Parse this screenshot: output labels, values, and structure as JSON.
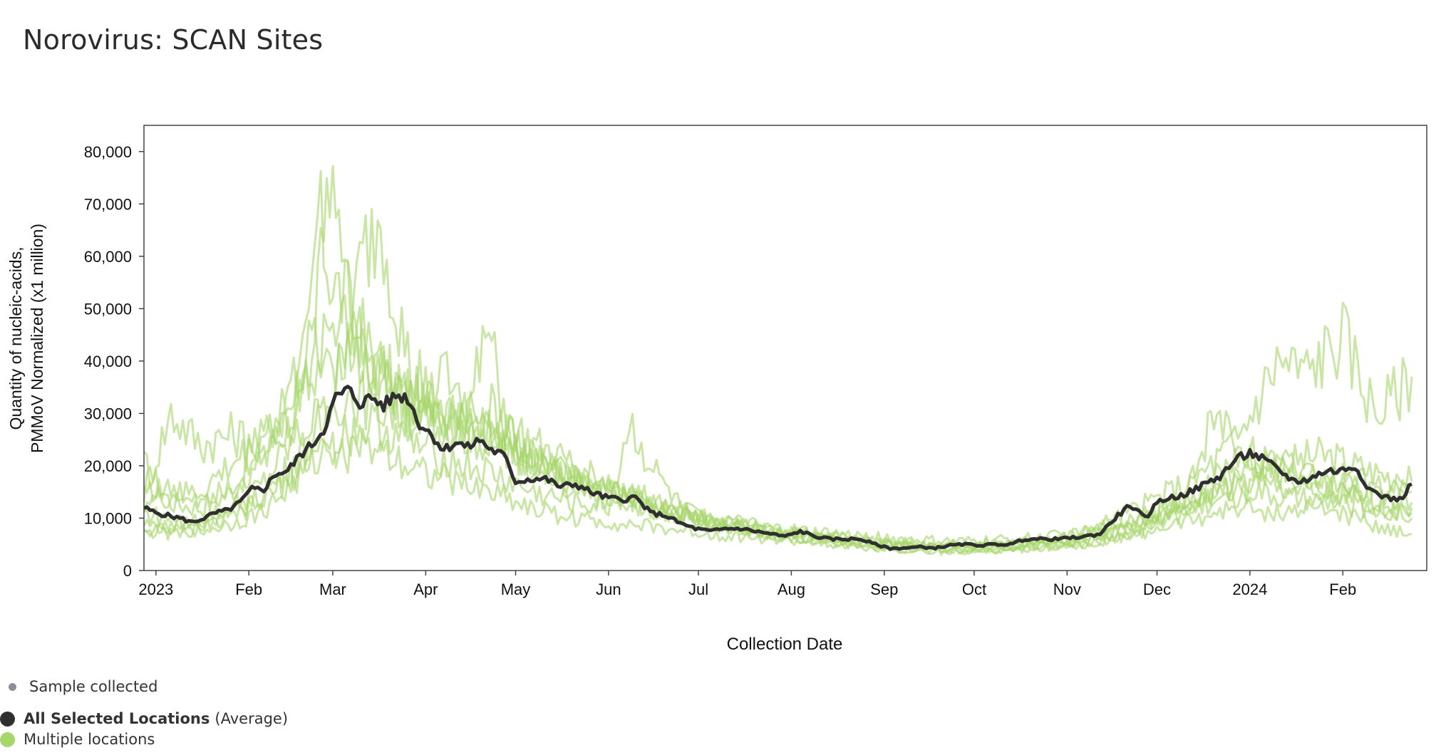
{
  "page": {
    "title": "Norovirus: SCAN Sites"
  },
  "legend": {
    "sample_label": "Sample collected",
    "avg_label_bold": "All Selected Locations",
    "avg_label_suffix": "(Average)",
    "multi_label": "Multiple locations"
  },
  "colors": {
    "average": "#2f2f2f",
    "locations": "#a7d66a",
    "sample_dot": "#8a8f98",
    "frame": "#444444"
  },
  "chart_data": {
    "type": "line",
    "title": "Norovirus: SCAN Sites",
    "xlabel": "Collection Date",
    "ylabel_lines": [
      "Quantity of nucleic-acids,",
      "PMMoV Normalized (x1 million)"
    ],
    "x_range": [
      "2022-12-28",
      "2024-02-29"
    ],
    "ylim": [
      0,
      85000
    ],
    "y_ticks": [
      0,
      10000,
      20000,
      30000,
      40000,
      50000,
      60000,
      70000,
      80000
    ],
    "y_tick_labels": [
      "0",
      "10,000",
      "20,000",
      "30,000",
      "40,000",
      "50,000",
      "60,000",
      "70,000",
      "80,000"
    ],
    "x_ticks": [
      {
        "date": "2023-01-01",
        "label": "2023"
      },
      {
        "date": "2023-02-01",
        "label": "Feb"
      },
      {
        "date": "2023-03-01",
        "label": "Mar"
      },
      {
        "date": "2023-04-01",
        "label": "Apr"
      },
      {
        "date": "2023-05-01",
        "label": "May"
      },
      {
        "date": "2023-06-01",
        "label": "Jun"
      },
      {
        "date": "2023-07-01",
        "label": "Jul"
      },
      {
        "date": "2023-08-01",
        "label": "Aug"
      },
      {
        "date": "2023-09-01",
        "label": "Sep"
      },
      {
        "date": "2023-10-01",
        "label": "Oct"
      },
      {
        "date": "2023-11-01",
        "label": "Nov"
      },
      {
        "date": "2023-12-01",
        "label": "Dec"
      },
      {
        "date": "2024-01-01",
        "label": "2024"
      },
      {
        "date": "2024-02-01",
        "label": "Feb"
      }
    ],
    "grid": false,
    "series": [
      {
        "name": "All Selected Locations",
        "x": [
          "2022-12-28",
          "2023-01-01",
          "2023-01-05",
          "2023-01-09",
          "2023-01-13",
          "2023-01-17",
          "2023-01-21",
          "2023-01-25",
          "2023-01-29",
          "2023-02-02",
          "2023-02-06",
          "2023-02-10",
          "2023-02-14",
          "2023-02-18",
          "2023-02-22",
          "2023-02-26",
          "2023-03-02",
          "2023-03-06",
          "2023-03-10",
          "2023-03-14",
          "2023-03-18",
          "2023-03-22",
          "2023-03-26",
          "2023-03-30",
          "2023-04-03",
          "2023-04-07",
          "2023-04-11",
          "2023-04-15",
          "2023-04-19",
          "2023-04-23",
          "2023-04-27",
          "2023-05-01",
          "2023-05-06",
          "2023-05-11",
          "2023-05-16",
          "2023-05-21",
          "2023-05-26",
          "2023-05-31",
          "2023-06-05",
          "2023-06-10",
          "2023-06-15",
          "2023-06-20",
          "2023-06-25",
          "2023-06-30",
          "2023-07-05",
          "2023-07-10",
          "2023-07-15",
          "2023-07-20",
          "2023-07-25",
          "2023-07-30",
          "2023-08-04",
          "2023-08-09",
          "2023-08-14",
          "2023-08-19",
          "2023-08-24",
          "2023-08-29",
          "2023-09-03",
          "2023-09-08",
          "2023-09-13",
          "2023-09-18",
          "2023-09-23",
          "2023-09-28",
          "2023-10-03",
          "2023-10-08",
          "2023-10-13",
          "2023-10-18",
          "2023-10-23",
          "2023-10-28",
          "2023-11-02",
          "2023-11-07",
          "2023-11-12",
          "2023-11-17",
          "2023-11-22",
          "2023-11-27",
          "2023-12-02",
          "2023-12-07",
          "2023-12-12",
          "2023-12-17",
          "2023-12-22",
          "2023-12-27",
          "2024-01-01",
          "2024-01-06",
          "2024-01-11",
          "2024-01-16",
          "2024-01-21",
          "2024-01-26",
          "2024-01-31",
          "2024-02-05",
          "2024-02-10",
          "2024-02-15",
          "2024-02-20",
          "2024-02-24"
        ],
        "values": [
          12000,
          11000,
          10500,
          10000,
          9200,
          10000,
          11000,
          11500,
          13000,
          15500,
          15500,
          18500,
          19000,
          22000,
          24000,
          27000,
          33000,
          34500,
          32000,
          33000,
          31500,
          33500,
          33000,
          28000,
          26000,
          23000,
          24500,
          23500,
          25000,
          23000,
          22000,
          17000,
          17500,
          17500,
          16000,
          16500,
          15000,
          14000,
          13500,
          14000,
          11000,
          10500,
          9000,
          8000,
          7500,
          8000,
          8000,
          7500,
          7000,
          6500,
          7500,
          6500,
          6000,
          6000,
          6000,
          5000,
          4200,
          4300,
          4500,
          4300,
          4800,
          5000,
          4800,
          5000,
          5000,
          6000,
          6000,
          6000,
          6200,
          6500,
          7000,
          10000,
          12500,
          10000,
          13500,
          14000,
          15000,
          16500,
          18000,
          21000,
          22500,
          21000,
          19000,
          17000,
          17500,
          19000,
          19000,
          20000,
          15500,
          14000,
          13500,
          16500
        ]
      },
      {
        "name": "Multiple locations",
        "sites": [
          {
            "x": [
              "2022-12-28",
              "2023-01-06",
              "2023-01-16",
              "2023-01-26",
              "2023-02-05",
              "2023-02-15",
              "2023-02-21",
              "2023-02-24",
              "2023-03-01",
              "2023-03-07",
              "2023-03-15",
              "2023-03-25",
              "2023-04-05",
              "2023-04-15",
              "2023-04-25",
              "2023-05-06",
              "2023-05-20",
              "2023-06-05",
              "2023-06-20",
              "2023-07-05",
              "2023-07-25",
              "2023-08-15",
              "2023-09-05",
              "2023-09-25",
              "2023-10-15",
              "2023-11-05",
              "2023-11-25",
              "2023-12-15",
              "2023-12-28",
              "2024-01-10",
              "2024-01-25",
              "2024-02-10",
              "2024-02-24"
            ],
            "values": [
              20000,
              13000,
              12000,
              15000,
              22000,
              28000,
              45000,
              68000,
              55000,
              50000,
              40000,
              34000,
              28000,
              26000,
              24000,
              21000,
              18000,
              14000,
              11000,
              9000,
              7500,
              6500,
              5000,
              4500,
              5000,
              6000,
              10000,
              15000,
              22000,
              20000,
              22000,
              19000,
              17000
            ]
          },
          {
            "x": [
              "2022-12-28",
              "2023-01-06",
              "2023-01-16",
              "2023-01-26",
              "2023-02-05",
              "2023-02-15",
              "2023-02-22",
              "2023-02-27",
              "2023-03-03",
              "2023-03-09",
              "2023-03-15",
              "2023-03-25",
              "2023-04-05",
              "2023-04-15",
              "2023-04-25",
              "2023-05-06",
              "2023-05-20",
              "2023-06-05",
              "2023-06-20",
              "2023-07-05",
              "2023-07-25",
              "2023-08-15",
              "2023-09-05",
              "2023-09-25",
              "2023-10-15",
              "2023-11-05",
              "2023-11-25",
              "2023-12-15",
              "2023-12-28",
              "2024-01-10",
              "2024-01-20",
              "2024-02-01",
              "2024-02-12",
              "2024-02-24"
            ],
            "values": [
              15000,
              30000,
              24000,
              26000,
              25000,
              32000,
              40000,
              79000,
              62000,
              45000,
              38000,
              32000,
              30000,
              28000,
              27000,
              22000,
              18000,
              15000,
              12000,
              10000,
              7500,
              6000,
              5500,
              5000,
              5500,
              7000,
              12000,
              18000,
              25000,
              40000,
              38000,
              45000,
              30000,
              37000
            ]
          },
          {
            "x": [
              "2022-12-28",
              "2023-01-06",
              "2023-01-16",
              "2023-01-26",
              "2023-02-05",
              "2023-02-15",
              "2023-02-25",
              "2023-03-05",
              "2023-03-11",
              "2023-03-17",
              "2023-03-22",
              "2023-03-28",
              "2023-04-05",
              "2023-04-15",
              "2023-04-25",
              "2023-05-06",
              "2023-05-20",
              "2023-06-05",
              "2023-06-20",
              "2023-07-05",
              "2023-07-25",
              "2023-08-15",
              "2023-09-05",
              "2023-09-25",
              "2023-10-15",
              "2023-11-05",
              "2023-11-25",
              "2023-12-15",
              "2023-12-28",
              "2024-01-10",
              "2024-01-25",
              "2024-02-10",
              "2024-02-24"
            ],
            "values": [
              9000,
              8000,
              10000,
              12000,
              16000,
              24000,
              30000,
              40000,
              60000,
              68000,
              52000,
              35000,
              30000,
              27000,
              25000,
              20000,
              17000,
              14000,
              11000,
              9000,
              7000,
              6000,
              4500,
              4000,
              4500,
              5500,
              9000,
              14000,
              17000,
              16000,
              15000,
              14000,
              12000
            ]
          },
          {
            "x": [
              "2022-12-28",
              "2023-01-06",
              "2023-01-16",
              "2023-01-26",
              "2023-02-05",
              "2023-02-15",
              "2023-02-25",
              "2023-03-05",
              "2023-03-15",
              "2023-03-25",
              "2023-04-05",
              "2023-04-15",
              "2023-04-22",
              "2023-04-25",
              "2023-05-01",
              "2023-05-10",
              "2023-05-20",
              "2023-06-05",
              "2023-06-20",
              "2023-07-05",
              "2023-07-25",
              "2023-08-15",
              "2023-09-05",
              "2023-09-25",
              "2023-10-15",
              "2023-11-05",
              "2023-11-25",
              "2023-12-15",
              "2023-12-28",
              "2024-01-10",
              "2024-01-25",
              "2024-02-10",
              "2024-02-24"
            ],
            "values": [
              11000,
              10000,
              9000,
              11000,
              14000,
              20000,
              28000,
              34000,
              32000,
              30000,
              28000,
              30000,
              46000,
              36000,
              24000,
              20000,
              17000,
              15000,
              12000,
              9000,
              8000,
              6000,
              5000,
              4500,
              5000,
              5500,
              8000,
              12000,
              14000,
              19000,
              17000,
              15000,
              13000
            ]
          },
          {
            "x": [
              "2022-12-28",
              "2023-01-06",
              "2023-01-16",
              "2023-01-26",
              "2023-02-05",
              "2023-02-15",
              "2023-02-25",
              "2023-03-05",
              "2023-03-15",
              "2023-03-25",
              "2023-04-05",
              "2023-04-15",
              "2023-04-25",
              "2023-05-06",
              "2023-05-20",
              "2023-06-01",
              "2023-06-08",
              "2023-06-15",
              "2023-06-25",
              "2023-07-05",
              "2023-07-25",
              "2023-08-15",
              "2023-09-05",
              "2023-09-25",
              "2023-10-15",
              "2023-11-05",
              "2023-11-25",
              "2023-12-10",
              "2023-12-20",
              "2023-12-28",
              "2024-01-10",
              "2024-01-25",
              "2024-02-10",
              "2024-02-24"
            ],
            "values": [
              7000,
              8000,
              7500,
              9000,
              11000,
              16000,
              22000,
              26000,
              28000,
              25000,
              22000,
              20000,
              18000,
              15000,
              13000,
              12000,
              28000,
              20000,
              12000,
              9000,
              7000,
              5000,
              4000,
              3500,
              4000,
              4500,
              7000,
              12000,
              30000,
              24000,
              19000,
              16000,
              13000,
              10000
            ]
          },
          {
            "x": [
              "2022-12-28",
              "2023-01-06",
              "2023-01-16",
              "2023-01-26",
              "2023-02-05",
              "2023-02-15",
              "2023-02-25",
              "2023-03-05",
              "2023-03-15",
              "2023-03-25",
              "2023-04-05",
              "2023-04-15",
              "2023-04-25",
              "2023-05-06",
              "2023-05-20",
              "2023-06-05",
              "2023-06-20",
              "2023-07-05",
              "2023-07-25",
              "2023-08-15",
              "2023-09-05",
              "2023-09-25",
              "2023-10-15",
              "2023-11-05",
              "2023-11-25",
              "2023-12-15",
              "2023-12-28",
              "2024-01-10",
              "2024-01-25",
              "2024-02-10",
              "2024-02-24"
            ],
            "values": [
              13000,
              14000,
              15000,
              20000,
              25000,
              35000,
              45000,
              50000,
              40000,
              35000,
              38000,
              32000,
              30000,
              24000,
              20000,
              16000,
              12000,
              10000,
              8000,
              7000,
              6000,
              5500,
              6000,
              7000,
              10000,
              14000,
              16000,
              14000,
              13000,
              12000,
              11000
            ]
          },
          {
            "x": [
              "2022-12-28",
              "2023-01-06",
              "2023-01-16",
              "2023-01-26",
              "2023-02-05",
              "2023-02-15",
              "2023-02-25",
              "2023-03-05",
              "2023-03-15",
              "2023-03-25",
              "2023-04-05",
              "2023-04-15",
              "2023-04-25",
              "2023-05-06",
              "2023-05-20",
              "2023-06-05",
              "2023-06-20",
              "2023-07-05",
              "2023-07-25",
              "2023-08-15",
              "2023-09-05",
              "2023-09-25",
              "2023-10-15",
              "2023-11-05",
              "2023-11-25",
              "2023-12-15",
              "2023-12-28",
              "2024-01-10",
              "2024-01-25",
              "2024-02-10",
              "2024-02-24"
            ],
            "values": [
              8000,
              7000,
              8000,
              10000,
              13000,
              18000,
              24000,
              22000,
              24000,
              21000,
              18000,
              16000,
              15000,
              12000,
              10000,
              9000,
              8000,
              7000,
              6000,
              5000,
              4000,
              3500,
              4000,
              5000,
              7000,
              10000,
              12000,
              11000,
              12000,
              9000,
              7000
            ]
          },
          {
            "x": [
              "2022-12-28",
              "2023-01-06",
              "2023-01-16",
              "2023-01-26",
              "2023-02-05",
              "2023-02-15",
              "2023-02-25",
              "2023-03-05",
              "2023-03-15",
              "2023-03-25",
              "2023-04-05",
              "2023-04-15",
              "2023-04-25",
              "2023-05-06",
              "2023-05-20",
              "2023-06-05",
              "2023-06-20",
              "2023-07-05",
              "2023-07-25",
              "2023-08-15",
              "2023-09-05",
              "2023-09-25",
              "2023-10-15",
              "2023-11-05",
              "2023-11-25",
              "2023-12-15",
              "2023-12-28",
              "2024-01-10",
              "2024-01-25",
              "2024-02-10",
              "2024-02-24"
            ],
            "values": [
              16000,
              15000,
              14000,
              17000,
              20000,
              30000,
              40000,
              42000,
              37000,
              33000,
              30000,
              28000,
              26000,
              20000,
              16000,
              13000,
              11000,
              9000,
              7000,
              6000,
              5000,
              4500,
              5000,
              6000,
              9000,
              13000,
              18000,
              20000,
              18000,
              17000,
              15000
            ]
          }
        ]
      }
    ]
  }
}
